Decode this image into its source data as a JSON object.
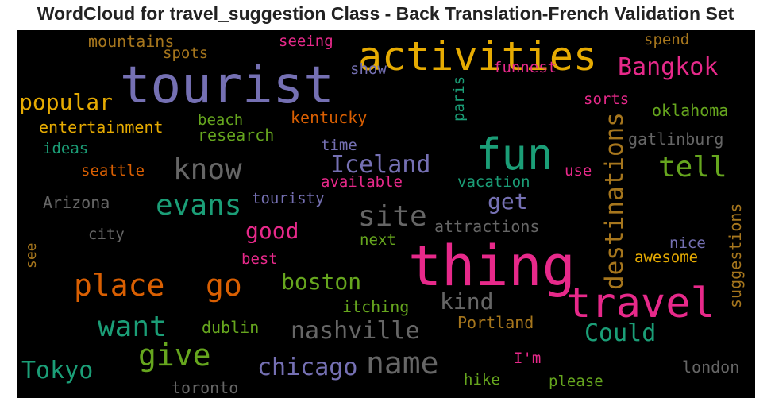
{
  "title": "WordCloud for travel_suggestion Class - Back Translation-French Validation Set",
  "colors": {
    "background": "#000000",
    "palette": [
      "#7570b3",
      "#1b9e77",
      "#e7298a",
      "#d95f02",
      "#66a61e",
      "#e6ab02",
      "#a6761d",
      "#666666"
    ]
  },
  "chart_data": {
    "type": "wordcloud",
    "words": [
      {
        "text": "thing",
        "weight": 1.0,
        "color": "#e7298a",
        "orientation": "horizontal"
      },
      {
        "text": "tourist",
        "weight": 0.95,
        "color": "#7570b3",
        "orientation": "horizontal"
      },
      {
        "text": "fun",
        "weight": 0.75,
        "color": "#1b9e77",
        "orientation": "horizontal"
      },
      {
        "text": "travel",
        "weight": 0.72,
        "color": "#e7298a",
        "orientation": "horizontal"
      },
      {
        "text": "activities",
        "weight": 0.65,
        "color": "#e6ab02",
        "orientation": "horizontal"
      },
      {
        "text": "name",
        "weight": 0.55,
        "color": "#666666",
        "orientation": "horizontal"
      },
      {
        "text": "place",
        "weight": 0.52,
        "color": "#d95f02",
        "orientation": "horizontal"
      },
      {
        "text": "go",
        "weight": 0.52,
        "color": "#d95f02",
        "orientation": "horizontal"
      },
      {
        "text": "give",
        "weight": 0.5,
        "color": "#66a61e",
        "orientation": "horizontal"
      },
      {
        "text": "evans",
        "weight": 0.5,
        "color": "#1b9e77",
        "orientation": "horizontal"
      },
      {
        "text": "know",
        "weight": 0.48,
        "color": "#666666",
        "orientation": "horizontal"
      },
      {
        "text": "site",
        "weight": 0.48,
        "color": "#666666",
        "orientation": "horizontal"
      },
      {
        "text": "tell",
        "weight": 0.48,
        "color": "#66a61e",
        "orientation": "horizontal"
      },
      {
        "text": "want",
        "weight": 0.46,
        "color": "#1b9e77",
        "orientation": "horizontal"
      },
      {
        "text": "destinations",
        "weight": 0.42,
        "color": "#a6761d",
        "orientation": "vertical"
      },
      {
        "text": "see",
        "weight": 0.4,
        "color": "#a6761d",
        "orientation": "vertical"
      },
      {
        "text": "chicago",
        "weight": 0.4,
        "color": "#7570b3",
        "orientation": "horizontal"
      },
      {
        "text": "Tokyo",
        "weight": 0.4,
        "color": "#1b9e77",
        "orientation": "horizontal"
      },
      {
        "text": "nashville",
        "weight": 0.4,
        "color": "#666666",
        "orientation": "horizontal"
      },
      {
        "text": "Bangkok",
        "weight": 0.38,
        "color": "#e7298a",
        "orientation": "horizontal"
      },
      {
        "text": "Iceland",
        "weight": 0.38,
        "color": "#7570b3",
        "orientation": "horizontal"
      },
      {
        "text": "Could",
        "weight": 0.38,
        "color": "#1b9e77",
        "orientation": "horizontal"
      },
      {
        "text": "popular",
        "weight": 0.37,
        "color": "#e6ab02",
        "orientation": "horizontal"
      },
      {
        "text": "boston",
        "weight": 0.35,
        "color": "#66a61e",
        "orientation": "horizontal"
      },
      {
        "text": "good",
        "weight": 0.35,
        "color": "#e7298a",
        "orientation": "horizontal"
      },
      {
        "text": "get",
        "weight": 0.35,
        "color": "#7570b3",
        "orientation": "horizontal"
      },
      {
        "text": "kind",
        "weight": 0.34,
        "color": "#666666",
        "orientation": "horizontal"
      },
      {
        "text": "suggestions",
        "weight": 0.26,
        "color": "#a6761d",
        "orientation": "vertical"
      },
      {
        "text": "Portland",
        "weight": 0.26,
        "color": "#a6761d",
        "orientation": "horizontal"
      },
      {
        "text": "itching",
        "weight": 0.26,
        "color": "#66a61e",
        "orientation": "horizontal"
      },
      {
        "text": "mountains",
        "weight": 0.25,
        "color": "#a6761d",
        "orientation": "horizontal"
      },
      {
        "text": "entertainment",
        "weight": 0.24,
        "color": "#e6ab02",
        "orientation": "horizontal"
      },
      {
        "text": "research",
        "weight": 0.24,
        "color": "#66a61e",
        "orientation": "horizontal"
      },
      {
        "text": "kentucky",
        "weight": 0.24,
        "color": "#d95f02",
        "orientation": "horizontal"
      },
      {
        "text": "oklahoma",
        "weight": 0.24,
        "color": "#66a61e",
        "orientation": "horizontal"
      },
      {
        "text": "gatlinburg",
        "weight": 0.24,
        "color": "#666666",
        "orientation": "horizontal"
      },
      {
        "text": "attractions",
        "weight": 0.24,
        "color": "#666666",
        "orientation": "horizontal"
      },
      {
        "text": "Arizona",
        "weight": 0.24,
        "color": "#666666",
        "orientation": "horizontal"
      },
      {
        "text": "toronto",
        "weight": 0.24,
        "color": "#666666",
        "orientation": "horizontal"
      },
      {
        "text": "london",
        "weight": 0.24,
        "color": "#666666",
        "orientation": "horizontal"
      },
      {
        "text": "dublin",
        "weight": 0.24,
        "color": "#66a61e",
        "orientation": "horizontal"
      },
      {
        "text": "touristy",
        "weight": 0.23,
        "color": "#7570b3",
        "orientation": "horizontal"
      },
      {
        "text": "available",
        "weight": 0.23,
        "color": "#e7298a",
        "orientation": "horizontal"
      },
      {
        "text": "vacation",
        "weight": 0.23,
        "color": "#1b9e77",
        "orientation": "horizontal"
      },
      {
        "text": "awesome",
        "weight": 0.23,
        "color": "#e6ab02",
        "orientation": "horizontal"
      },
      {
        "text": "seeing",
        "weight": 0.23,
        "color": "#e7298a",
        "orientation": "horizontal"
      },
      {
        "text": "spend",
        "weight": 0.23,
        "color": "#a6761d",
        "orientation": "horizontal"
      },
      {
        "text": "funnest",
        "weight": 0.23,
        "color": "#e7298a",
        "orientation": "horizontal"
      },
      {
        "text": "seattle",
        "weight": 0.23,
        "color": "#d95f02",
        "orientation": "horizontal"
      },
      {
        "text": "please",
        "weight": 0.23,
        "color": "#66a61e",
        "orientation": "horizontal"
      },
      {
        "text": "beach",
        "weight": 0.22,
        "color": "#66a61e",
        "orientation": "horizontal"
      },
      {
        "text": "ideas",
        "weight": 0.22,
        "color": "#1b9e77",
        "orientation": "horizontal"
      },
      {
        "text": "spots",
        "weight": 0.22,
        "color": "#a6761d",
        "orientation": "horizontal"
      },
      {
        "text": "show",
        "weight": 0.22,
        "color": "#7570b3",
        "orientation": "horizontal"
      },
      {
        "text": "sorts",
        "weight": 0.22,
        "color": "#e7298a",
        "orientation": "horizontal"
      },
      {
        "text": "time",
        "weight": 0.22,
        "color": "#7570b3",
        "orientation": "horizontal"
      },
      {
        "text": "use",
        "weight": 0.22,
        "color": "#e7298a",
        "orientation": "horizontal"
      },
      {
        "text": "city",
        "weight": 0.22,
        "color": "#666666",
        "orientation": "horizontal"
      },
      {
        "text": "next",
        "weight": 0.22,
        "color": "#66a61e",
        "orientation": "horizontal"
      },
      {
        "text": "nice",
        "weight": 0.22,
        "color": "#7570b3",
        "orientation": "horizontal"
      },
      {
        "text": "best",
        "weight": 0.22,
        "color": "#e7298a",
        "orientation": "horizontal"
      },
      {
        "text": "I'm",
        "weight": 0.22,
        "color": "#e7298a",
        "orientation": "horizontal"
      },
      {
        "text": "hike",
        "weight": 0.22,
        "color": "#66a61e",
        "orientation": "horizontal"
      },
      {
        "text": "paris",
        "weight": 0.21,
        "color": "#1b9e77",
        "orientation": "vertical"
      }
    ]
  }
}
